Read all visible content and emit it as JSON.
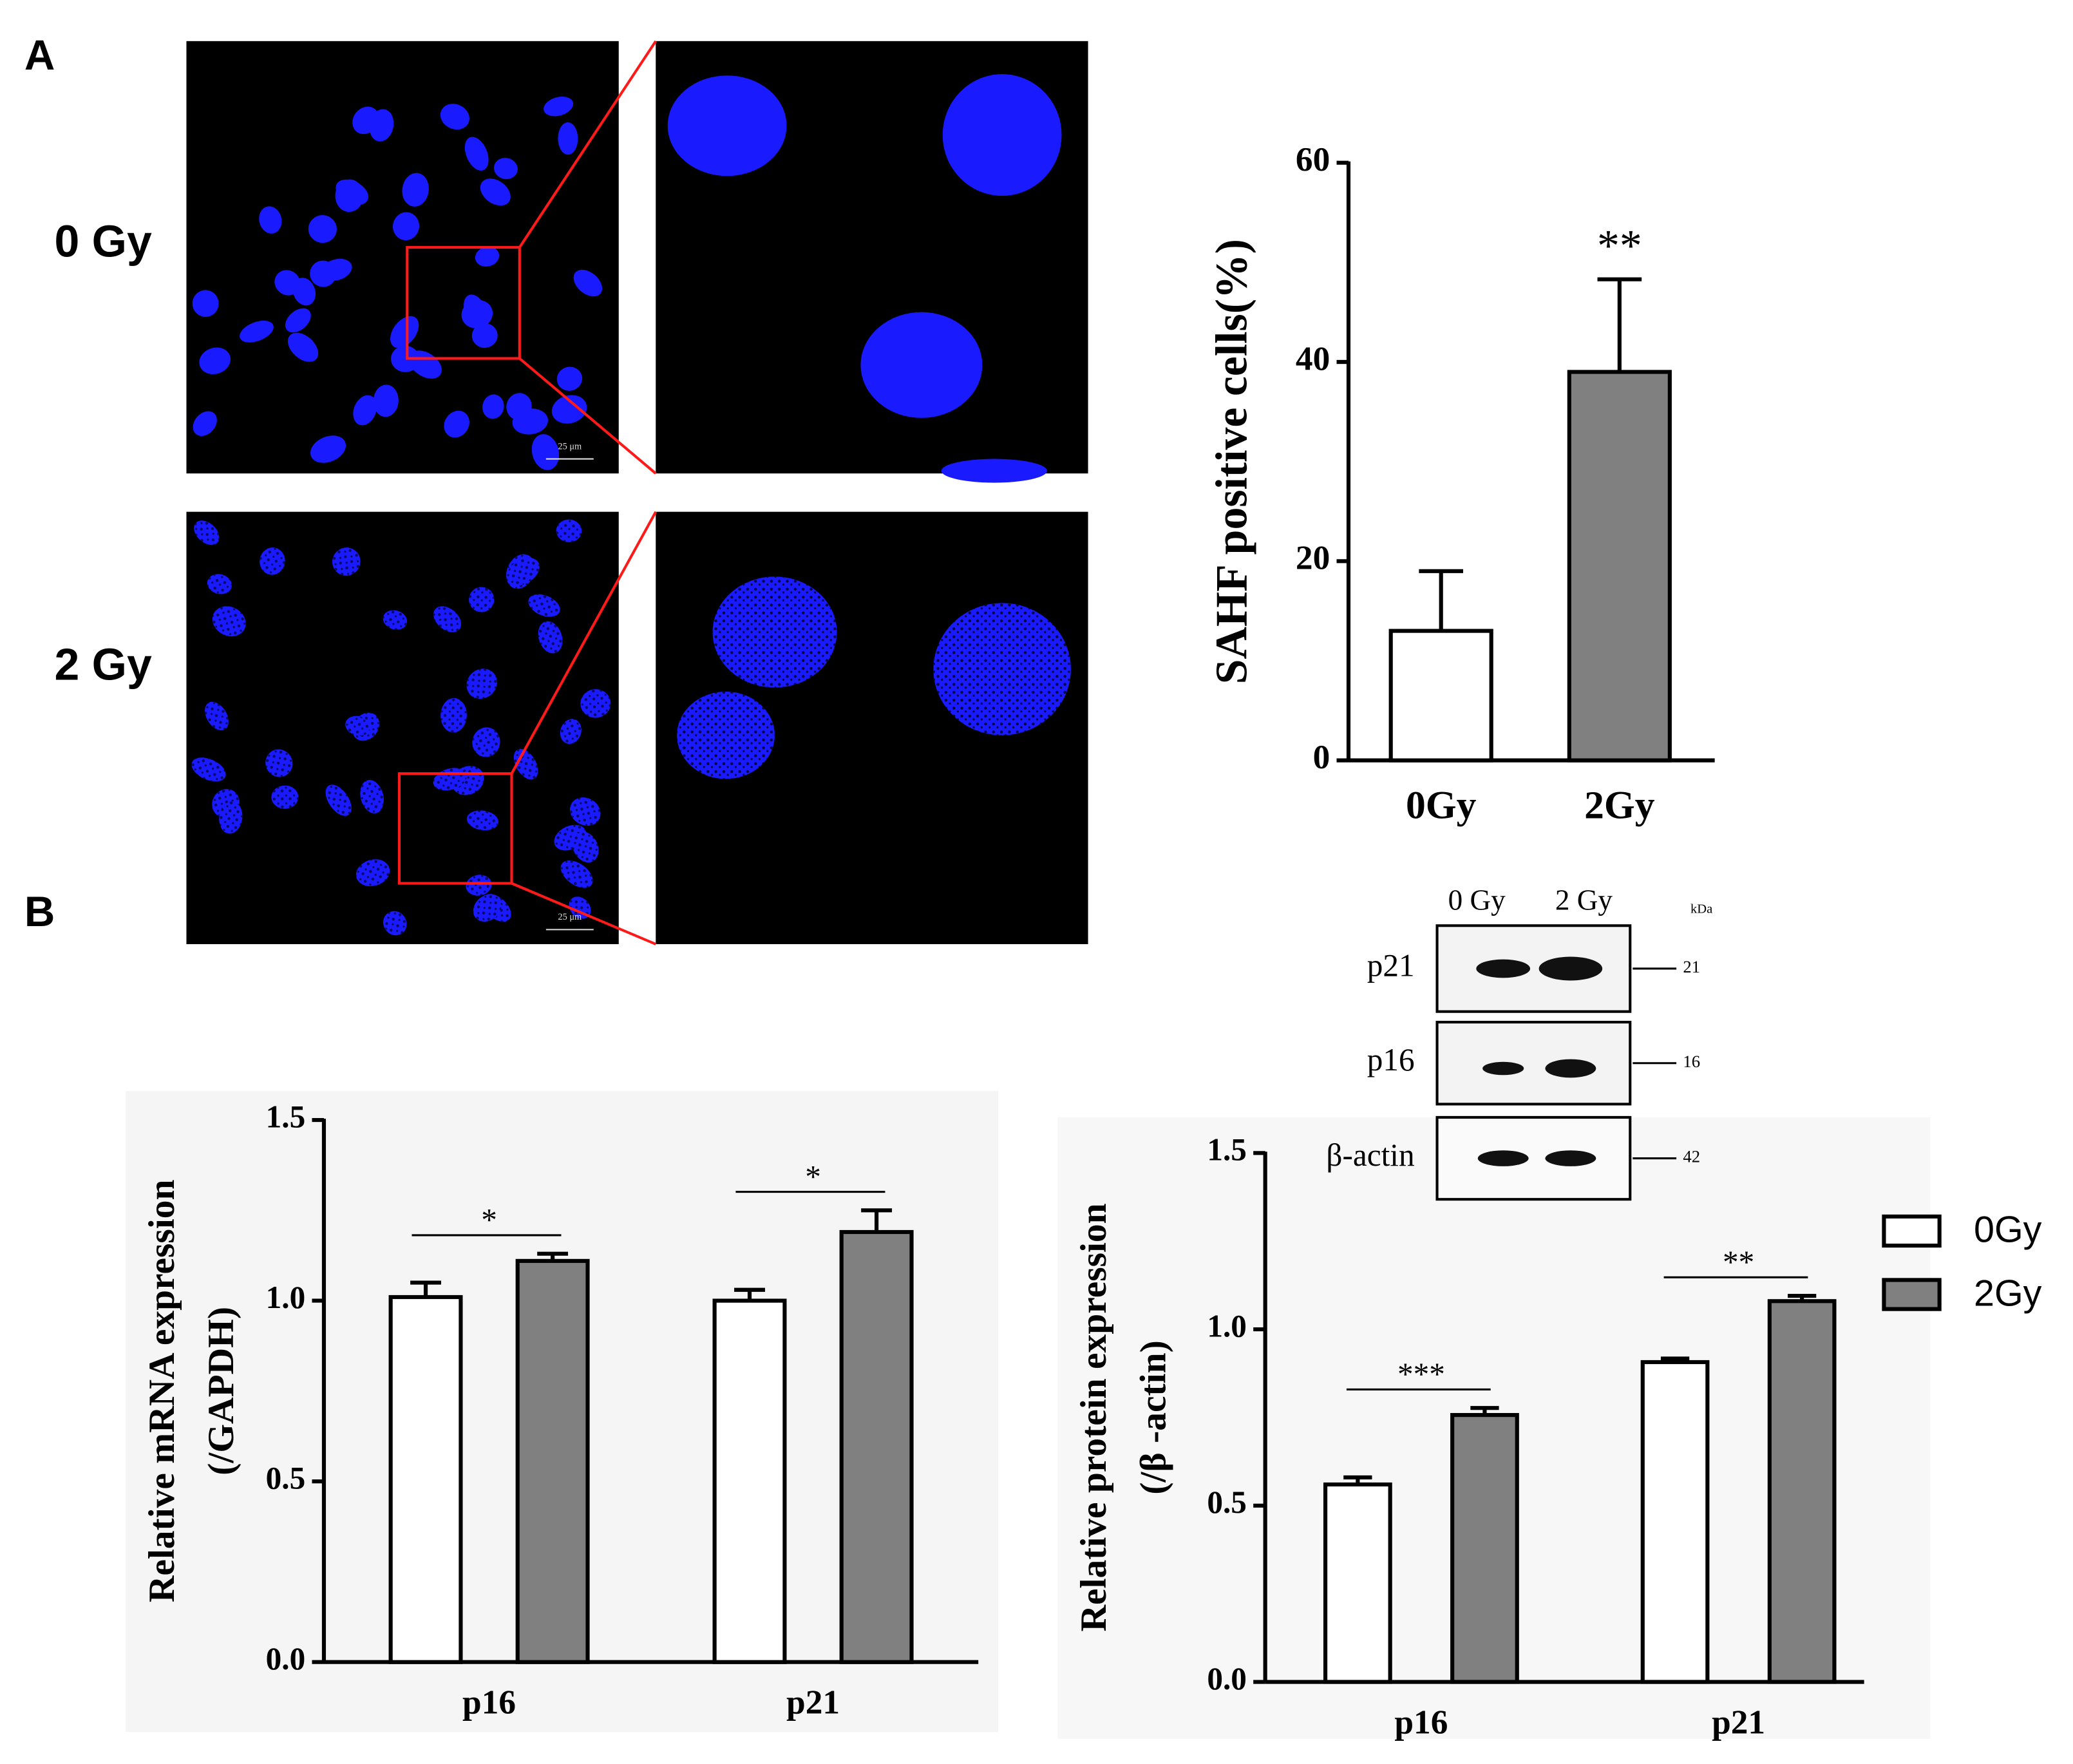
{
  "panel_labels": [
    "A",
    "B"
  ],
  "dose_labels": [
    "0 Gy",
    "2 Gy"
  ],
  "scale_bar": "25 μm",
  "blot": {
    "lanes": [
      "0 Gy",
      "2 Gy"
    ],
    "unit": "kDa",
    "rows": [
      {
        "protein": "p21",
        "kda": 21
      },
      {
        "protein": "p16",
        "kda": 16
      },
      {
        "protein": "β-actin",
        "kda": 42
      }
    ]
  },
  "chart_data": [
    {
      "type": "bar",
      "ylabel": [
        "SAHF  positive cells(%)"
      ],
      "categories": [
        "0Gy",
        "2Gy"
      ],
      "values": [
        13,
        39
      ],
      "errors": [
        6,
        9.3
      ],
      "colors": [
        "#ffffff",
        "#808080"
      ],
      "annotations": [
        null,
        "**"
      ],
      "ylim": [
        0,
        60
      ],
      "yticks": [
        0,
        20,
        40,
        60
      ]
    },
    {
      "type": "bar",
      "ylabel": [
        "Relative mRNA expression",
        "(/GAPDH)"
      ],
      "categories": [
        "p16",
        "p21"
      ],
      "series": [
        {
          "name": "0Gy",
          "color": "#ffffff",
          "values": [
            1.01,
            1.0
          ],
          "errors": [
            0.04,
            0.03
          ]
        },
        {
          "name": "2Gy",
          "color": "#808080",
          "values": [
            1.11,
            1.19
          ],
          "errors": [
            0.02,
            0.06
          ]
        }
      ],
      "annotations": [
        "*",
        "*"
      ],
      "ylim": [
        0,
        1.5
      ],
      "yticks": [
        {
          "value": 0,
          "label": "0.0"
        },
        {
          "value": 0.5,
          "label": "0.5"
        },
        {
          "value": 1,
          "label": "1.0"
        },
        {
          "value": 1.5,
          "label": "1.5"
        }
      ]
    },
    {
      "type": "bar",
      "ylabel": [
        "Relative protein expression",
        "(/β -actin)"
      ],
      "categories": [
        "p16",
        "p21"
      ],
      "series": [
        {
          "name": "0Gy",
          "color": "#ffffff",
          "values": [
            0.56,
            0.907
          ],
          "errors": [
            0.02,
            0.01
          ]
        },
        {
          "name": "2Gy",
          "color": "#808080",
          "values": [
            0.757,
            1.08
          ],
          "errors": [
            0.02,
            0.015
          ]
        }
      ],
      "annotations": [
        "***",
        "**"
      ],
      "legend": "right",
      "ylim": [
        0,
        1.5
      ],
      "yticks": [
        {
          "value": 0,
          "label": "0.0"
        },
        {
          "value": 0.5,
          "label": "0.5"
        },
        {
          "value": 1,
          "label": "1.0"
        },
        {
          "value": 1.5,
          "label": "1.5"
        }
      ]
    }
  ]
}
